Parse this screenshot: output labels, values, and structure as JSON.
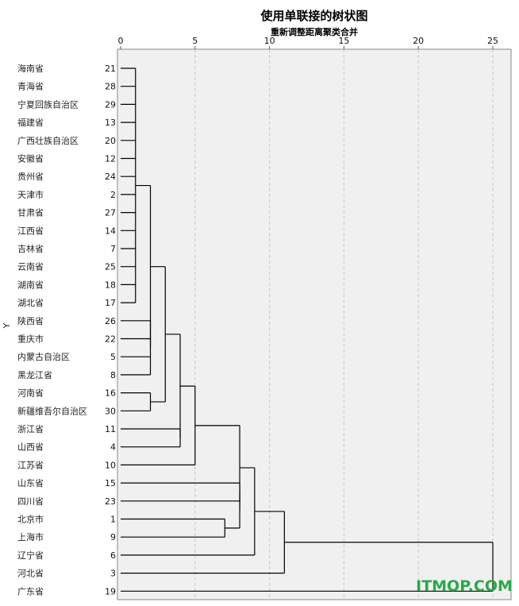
{
  "chart_data": {
    "type": "dendrogram",
    "title": "使用单联接的树状图",
    "subtitle": "重新调整距离聚类合并",
    "ylabel": "Y",
    "xlim": [
      0,
      25
    ],
    "xticks": [
      0,
      5,
      10,
      15,
      20,
      25
    ],
    "grid": true,
    "leaves": [
      {
        "name": "海南省",
        "id": "21"
      },
      {
        "name": "青海省",
        "id": "28"
      },
      {
        "name": "宁夏回族自治区",
        "id": "29"
      },
      {
        "name": "福建省",
        "id": "13"
      },
      {
        "name": "广西壮族自治区",
        "id": "20"
      },
      {
        "name": "安徽省",
        "id": "12"
      },
      {
        "name": "贵州省",
        "id": "24"
      },
      {
        "name": "天津市",
        "id": "2"
      },
      {
        "name": "甘肃省",
        "id": "27"
      },
      {
        "name": "江西省",
        "id": "14"
      },
      {
        "name": "吉林省",
        "id": "7"
      },
      {
        "name": "云南省",
        "id": "25"
      },
      {
        "name": "湖南省",
        "id": "18"
      },
      {
        "name": "湖北省",
        "id": "17"
      },
      {
        "name": "陕西省",
        "id": "26"
      },
      {
        "name": "重庆市",
        "id": "22"
      },
      {
        "name": "内蒙古自治区",
        "id": "5"
      },
      {
        "name": "黑龙江省",
        "id": "8"
      },
      {
        "name": "河南省",
        "id": "16"
      },
      {
        "name": "新疆维吾尔自治区",
        "id": "30"
      },
      {
        "name": "浙江省",
        "id": "11"
      },
      {
        "name": "山西省",
        "id": "4"
      },
      {
        "name": "江苏省",
        "id": "10"
      },
      {
        "name": "山东省",
        "id": "15"
      },
      {
        "name": "四川省",
        "id": "23"
      },
      {
        "name": "北京市",
        "id": "1"
      },
      {
        "name": "上海市",
        "id": "9"
      },
      {
        "name": "辽宁省",
        "id": "6"
      },
      {
        "name": "河北省",
        "id": "3"
      },
      {
        "name": "广东省",
        "id": "19"
      }
    ],
    "merges": [
      {
        "a": [
          0,
          1,
          2,
          3,
          4,
          5,
          6,
          7,
          8,
          9,
          10,
          11,
          12,
          13
        ],
        "b": [
          14,
          15,
          16,
          17
        ],
        "d": 2.0
      },
      {
        "a": [
          0,
          1,
          2,
          3,
          4,
          5,
          6,
          7,
          8,
          9,
          10,
          11,
          12,
          13,
          14,
          15,
          16,
          17
        ],
        "b": [
          18,
          19
        ],
        "d": 3.0
      },
      {
        "a": [
          0,
          1,
          2,
          3,
          4,
          5,
          6,
          7,
          8,
          9,
          10,
          11,
          12,
          13,
          14,
          15,
          16,
          17,
          18,
          19
        ],
        "b": [
          20,
          21
        ],
        "d": 4.0
      },
      {
        "a": [
          0,
          1,
          2,
          3,
          4,
          5,
          6,
          7,
          8,
          9,
          10,
          11,
          12,
          13,
          14,
          15,
          16,
          17,
          18,
          19,
          20,
          21
        ],
        "b": [
          22
        ],
        "d": 5.0
      },
      {
        "a": [
          25
        ],
        "b": [
          26
        ],
        "d": 7.0
      },
      {
        "a": [
          23,
          24
        ],
        "b": [
          25,
          26
        ],
        "d": 8.0
      },
      {
        "a": [
          0,
          1,
          2,
          3,
          4,
          5,
          6,
          7,
          8,
          9,
          10,
          11,
          12,
          13,
          14,
          15,
          16,
          17,
          18,
          19,
          20,
          21,
          22
        ],
        "b": [
          23,
          24,
          25,
          26
        ],
        "d": 8.0
      },
      {
        "a": [
          0,
          1,
          2,
          3,
          4,
          5,
          6,
          7,
          8,
          9,
          10,
          11,
          12,
          13,
          14,
          15,
          16,
          17,
          18,
          19,
          20,
          21,
          22,
          23,
          24,
          25,
          26
        ],
        "b": [
          27
        ],
        "d": 9.0
      },
      {
        "a": [
          0,
          1,
          2,
          3,
          4,
          5,
          6,
          7,
          8,
          9,
          10,
          11,
          12,
          13,
          14,
          15,
          16,
          17,
          18,
          19,
          20,
          21,
          22,
          23,
          24,
          25,
          26,
          27
        ],
        "b": [
          28
        ],
        "d": 11.0
      },
      {
        "a": [
          0,
          1,
          2,
          3,
          4,
          5,
          6,
          7,
          8,
          9,
          10,
          11,
          12,
          13,
          14,
          15,
          16,
          17,
          18,
          19,
          20,
          21,
          22,
          23,
          24,
          25,
          26,
          27,
          28
        ],
        "b": [
          29
        ],
        "d": 25.0
      }
    ],
    "base_cluster": {
      "leaves": [
        0,
        1,
        2,
        3,
        4,
        5,
        6,
        7,
        8,
        9,
        10,
        11,
        12,
        13
      ],
      "d": 1.0
    },
    "sub_cluster": {
      "leaves": [
        14,
        15,
        16,
        17
      ],
      "d": 2.0
    },
    "pair_18_19": {
      "leaves": [
        18,
        19
      ],
      "d": 2.0
    },
    "pair_20_21": {
      "leaves": [
        20,
        21
      ],
      "d": 4.0
    },
    "pair_23_24": {
      "leaves": [
        23,
        24
      ],
      "d": 8.0
    }
  },
  "watermark": "ITMOP.COM",
  "colors": {
    "plot_bg": "#f0f0f0",
    "line": "#000000",
    "grid": "#c8c8c8",
    "watermark": "#2aa84a"
  }
}
